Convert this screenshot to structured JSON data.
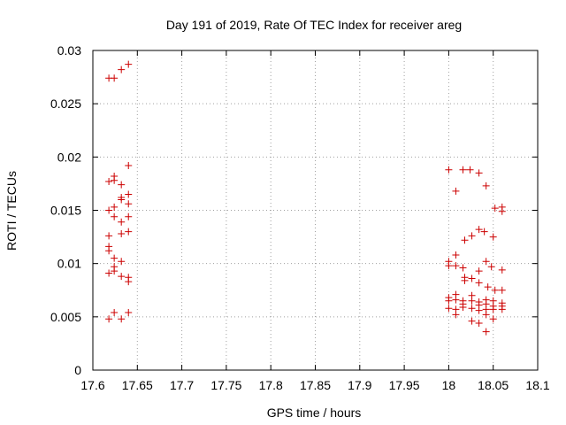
{
  "chart_data": {
    "type": "scatter",
    "title": "Day 191 of 2019, Rate Of TEC Index for receiver areg",
    "xlabel": "GPS time / hours",
    "ylabel": "ROTI / TECUs",
    "xlim": [
      17.6,
      18.1
    ],
    "ylim": [
      0,
      0.03
    ],
    "xticks": [
      "17.6",
      "17.65",
      "17.7",
      "17.75",
      "17.8",
      "17.85",
      "17.9",
      "17.95",
      "18",
      "18.05",
      "18.1"
    ],
    "yticks": [
      "0",
      "0.005",
      "0.01",
      "0.015",
      "0.02",
      "0.025",
      "0.03"
    ],
    "grid": true,
    "marker": "+",
    "marker_color": "#cc0000",
    "series": [
      {
        "name": "ROTI",
        "points": [
          [
            17.618,
            0.0274
          ],
          [
            17.624,
            0.0274
          ],
          [
            17.632,
            0.0282
          ],
          [
            17.64,
            0.0287
          ],
          [
            17.618,
            0.0177
          ],
          [
            17.624,
            0.0178
          ],
          [
            17.624,
            0.0182
          ],
          [
            17.632,
            0.0174
          ],
          [
            17.64,
            0.0192
          ],
          [
            17.618,
            0.015
          ],
          [
            17.624,
            0.0153
          ],
          [
            17.632,
            0.016
          ],
          [
            17.632,
            0.0162
          ],
          [
            17.64,
            0.0156
          ],
          [
            17.64,
            0.0165
          ],
          [
            17.624,
            0.0144
          ],
          [
            17.632,
            0.0139
          ],
          [
            17.64,
            0.0144
          ],
          [
            17.618,
            0.0126
          ],
          [
            17.618,
            0.0116
          ],
          [
            17.618,
            0.0112
          ],
          [
            17.632,
            0.0128
          ],
          [
            17.64,
            0.013
          ],
          [
            17.624,
            0.0105
          ],
          [
            17.632,
            0.0102
          ],
          [
            17.624,
            0.0097
          ],
          [
            17.624,
            0.0093
          ],
          [
            17.618,
            0.0091
          ],
          [
            17.632,
            0.0088
          ],
          [
            17.64,
            0.0087
          ],
          [
            17.64,
            0.0083
          ],
          [
            17.624,
            0.0054
          ],
          [
            17.64,
            0.0054
          ],
          [
            17.618,
            0.0048
          ],
          [
            17.632,
            0.0048
          ],
          [
            18.0,
            0.0188
          ],
          [
            18.016,
            0.0188
          ],
          [
            18.024,
            0.0188
          ],
          [
            18.034,
            0.0185
          ],
          [
            18.042,
            0.0173
          ],
          [
            18.008,
            0.0168
          ],
          [
            18.052,
            0.0152
          ],
          [
            18.06,
            0.0153
          ],
          [
            18.06,
            0.0149
          ],
          [
            18.034,
            0.0132
          ],
          [
            18.04,
            0.013
          ],
          [
            18.026,
            0.0126
          ],
          [
            18.018,
            0.0122
          ],
          [
            18.05,
            0.0125
          ],
          [
            18.008,
            0.0108
          ],
          [
            18.0,
            0.0102
          ],
          [
            18.0,
            0.0098
          ],
          [
            18.008,
            0.0098
          ],
          [
            18.016,
            0.0096
          ],
          [
            18.042,
            0.0102
          ],
          [
            18.048,
            0.0097
          ],
          [
            18.034,
            0.0093
          ],
          [
            18.06,
            0.0094
          ],
          [
            18.018,
            0.0087
          ],
          [
            18.018,
            0.0084
          ],
          [
            18.026,
            0.0086
          ],
          [
            18.034,
            0.0082
          ],
          [
            18.044,
            0.0078
          ],
          [
            18.052,
            0.0075
          ],
          [
            18.06,
            0.0075
          ],
          [
            18.0,
            0.0068
          ],
          [
            18.0,
            0.0065
          ],
          [
            18.008,
            0.0071
          ],
          [
            18.008,
            0.0066
          ],
          [
            18.016,
            0.0065
          ],
          [
            18.016,
            0.0062
          ],
          [
            18.026,
            0.007
          ],
          [
            18.026,
            0.0065
          ],
          [
            18.034,
            0.0064
          ],
          [
            18.034,
            0.0061
          ],
          [
            18.042,
            0.0066
          ],
          [
            18.042,
            0.0062
          ],
          [
            18.05,
            0.0065
          ],
          [
            18.05,
            0.006
          ],
          [
            18.06,
            0.0063
          ],
          [
            18.06,
            0.006
          ],
          [
            18.0,
            0.0058
          ],
          [
            18.008,
            0.0057
          ],
          [
            18.016,
            0.0059
          ],
          [
            18.026,
            0.0058
          ],
          [
            18.034,
            0.0056
          ],
          [
            18.042,
            0.0057
          ],
          [
            18.05,
            0.0057
          ],
          [
            18.06,
            0.0057
          ],
          [
            18.008,
            0.0052
          ],
          [
            18.026,
            0.0046
          ],
          [
            18.034,
            0.0044
          ],
          [
            18.042,
            0.0052
          ],
          [
            18.05,
            0.0048
          ],
          [
            18.042,
            0.0036
          ]
        ]
      }
    ]
  }
}
